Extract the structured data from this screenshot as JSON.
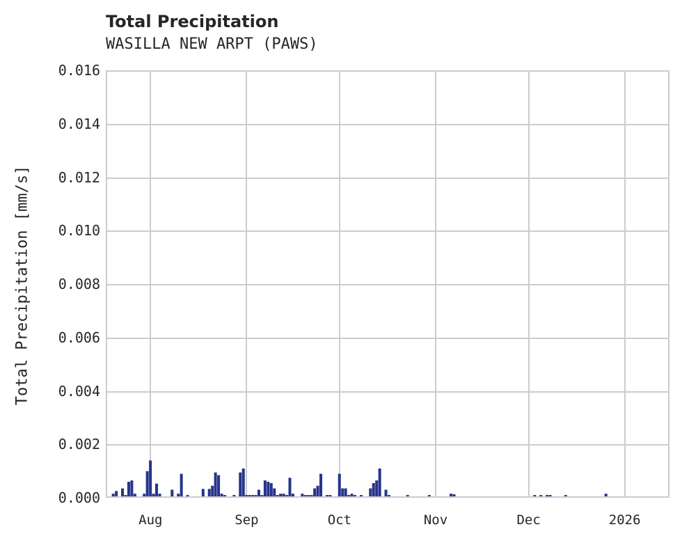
{
  "header": {
    "title": "Total Precipitation",
    "subtitle": "WASILLA NEW ARPT (PAWS)"
  },
  "axes": {
    "ylabel": "Total Precipitation [mm/s]",
    "yticks": [
      "0.016",
      "0.014",
      "0.012",
      "0.010",
      "0.008",
      "0.006",
      "0.004",
      "0.002",
      "0.000"
    ],
    "xticks": [
      "Aug",
      "Sep",
      "Oct",
      "Nov",
      "Dec",
      "2026"
    ]
  },
  "colors": {
    "bars": "#27348b",
    "grid": "#cccccc",
    "text": "#262626"
  },
  "chart_data": {
    "type": "bar",
    "title": "Total Precipitation",
    "subtitle": "WASILLA NEW ARPT (PAWS)",
    "xlabel": "",
    "ylabel": "Total Precipitation [mm/s]",
    "ylim": [
      0,
      0.016
    ],
    "xlim": [
      "2025-07-18",
      "2026-01-15"
    ],
    "grid": true,
    "legend": null,
    "x_tick_labels": [
      "Aug",
      "Sep",
      "Oct",
      "Nov",
      "Dec",
      "2026"
    ],
    "y_tick_labels": [
      "0.000",
      "0.002",
      "0.004",
      "0.006",
      "0.008",
      "0.010",
      "0.012",
      "0.014",
      "0.016"
    ],
    "series": [
      {
        "name": "Total Precipitation",
        "color": "#27348b",
        "x": [
          "2025-07-20",
          "2025-07-21",
          "2025-07-23",
          "2025-07-24",
          "2025-07-25",
          "2025-07-26",
          "2025-07-27",
          "2025-07-30",
          "2025-07-31",
          "2025-08-01",
          "2025-08-02",
          "2025-08-03",
          "2025-08-04",
          "2025-08-08",
          "2025-08-10",
          "2025-08-11",
          "2025-08-13",
          "2025-08-18",
          "2025-08-20",
          "2025-08-21",
          "2025-08-22",
          "2025-08-23",
          "2025-08-24",
          "2025-08-25",
          "2025-08-28",
          "2025-08-30",
          "2025-08-31",
          "2025-09-01",
          "2025-09-02",
          "2025-09-03",
          "2025-09-04",
          "2025-09-05",
          "2025-09-06",
          "2025-09-07",
          "2025-09-08",
          "2025-09-09",
          "2025-09-10",
          "2025-09-11",
          "2025-09-12",
          "2025-09-13",
          "2025-09-14",
          "2025-09-15",
          "2025-09-16",
          "2025-09-19",
          "2025-09-20",
          "2025-09-21",
          "2025-09-22",
          "2025-09-23",
          "2025-09-24",
          "2025-09-25",
          "2025-09-27",
          "2025-09-28",
          "2025-10-01",
          "2025-10-02",
          "2025-10-03",
          "2025-10-04",
          "2025-10-05",
          "2025-10-06",
          "2025-10-08",
          "2025-10-11",
          "2025-10-12",
          "2025-10-13",
          "2025-10-14",
          "2025-10-16",
          "2025-10-17",
          "2025-10-23",
          "2025-10-30",
          "2025-11-06",
          "2025-11-07",
          "2025-12-03",
          "2025-12-05",
          "2025-12-07",
          "2025-12-08",
          "2025-12-13",
          "2025-12-26"
        ],
        "values": [
          0.0001,
          0.0002,
          0.0003,
          5e-05,
          0.00055,
          0.0006,
          0.0001,
          0.0001,
          0.00095,
          0.00135,
          0.0001,
          0.00048,
          0.0001,
          0.00025,
          0.0001,
          0.00085,
          5e-05,
          0.00028,
          0.00028,
          0.0004,
          0.0009,
          0.0008,
          0.0001,
          5e-05,
          5e-05,
          0.0009,
          0.00105,
          5e-05,
          5e-05,
          5e-05,
          5e-05,
          0.00025,
          5e-05,
          0.0006,
          0.00055,
          0.0005,
          0.0003,
          5e-05,
          0.0001,
          0.0001,
          5e-05,
          0.0007,
          0.0001,
          0.0001,
          5e-05,
          5e-05,
          5e-05,
          0.0003,
          0.0004,
          0.00085,
          5e-05,
          5e-05,
          0.00085,
          0.0003,
          0.0003,
          5e-05,
          0.0001,
          5e-05,
          5e-05,
          0.0003,
          0.0005,
          0.0006,
          0.00105,
          0.00025,
          5e-05,
          5e-05,
          5e-05,
          0.0001,
          8e-05,
          5e-05,
          5e-05,
          5e-05,
          5e-05,
          5e-05,
          0.0001
        ]
      }
    ]
  }
}
